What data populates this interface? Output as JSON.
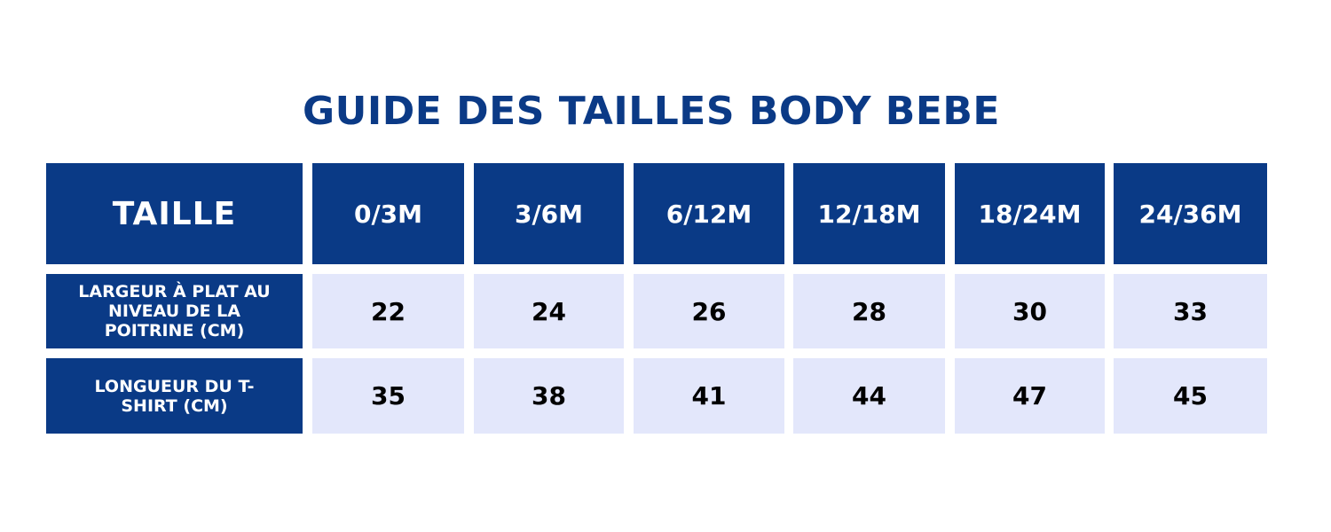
{
  "title": "GUIDE DES TAILLES BODY BEBE",
  "table": {
    "corner_label": "TAILLE",
    "sizes": [
      "0/3M",
      "3/6M",
      "6/12M",
      "12/18M",
      "18/24M",
      "24/36M"
    ],
    "rows": [
      {
        "label": "LARGEUR À PLAT AU NIVEAU DE LA POITRINE (CM)",
        "values": [
          "22",
          "24",
          "26",
          "28",
          "30",
          "33"
        ]
      },
      {
        "label": "LONGUEUR DU T-SHIRT (CM)",
        "values": [
          "35",
          "38",
          "41",
          "44",
          "47",
          "45"
        ]
      }
    ]
  },
  "colors": {
    "header_blue": "#0a3a86",
    "cell_light": "#e3e7fb",
    "title_blue": "#0b3a86"
  }
}
